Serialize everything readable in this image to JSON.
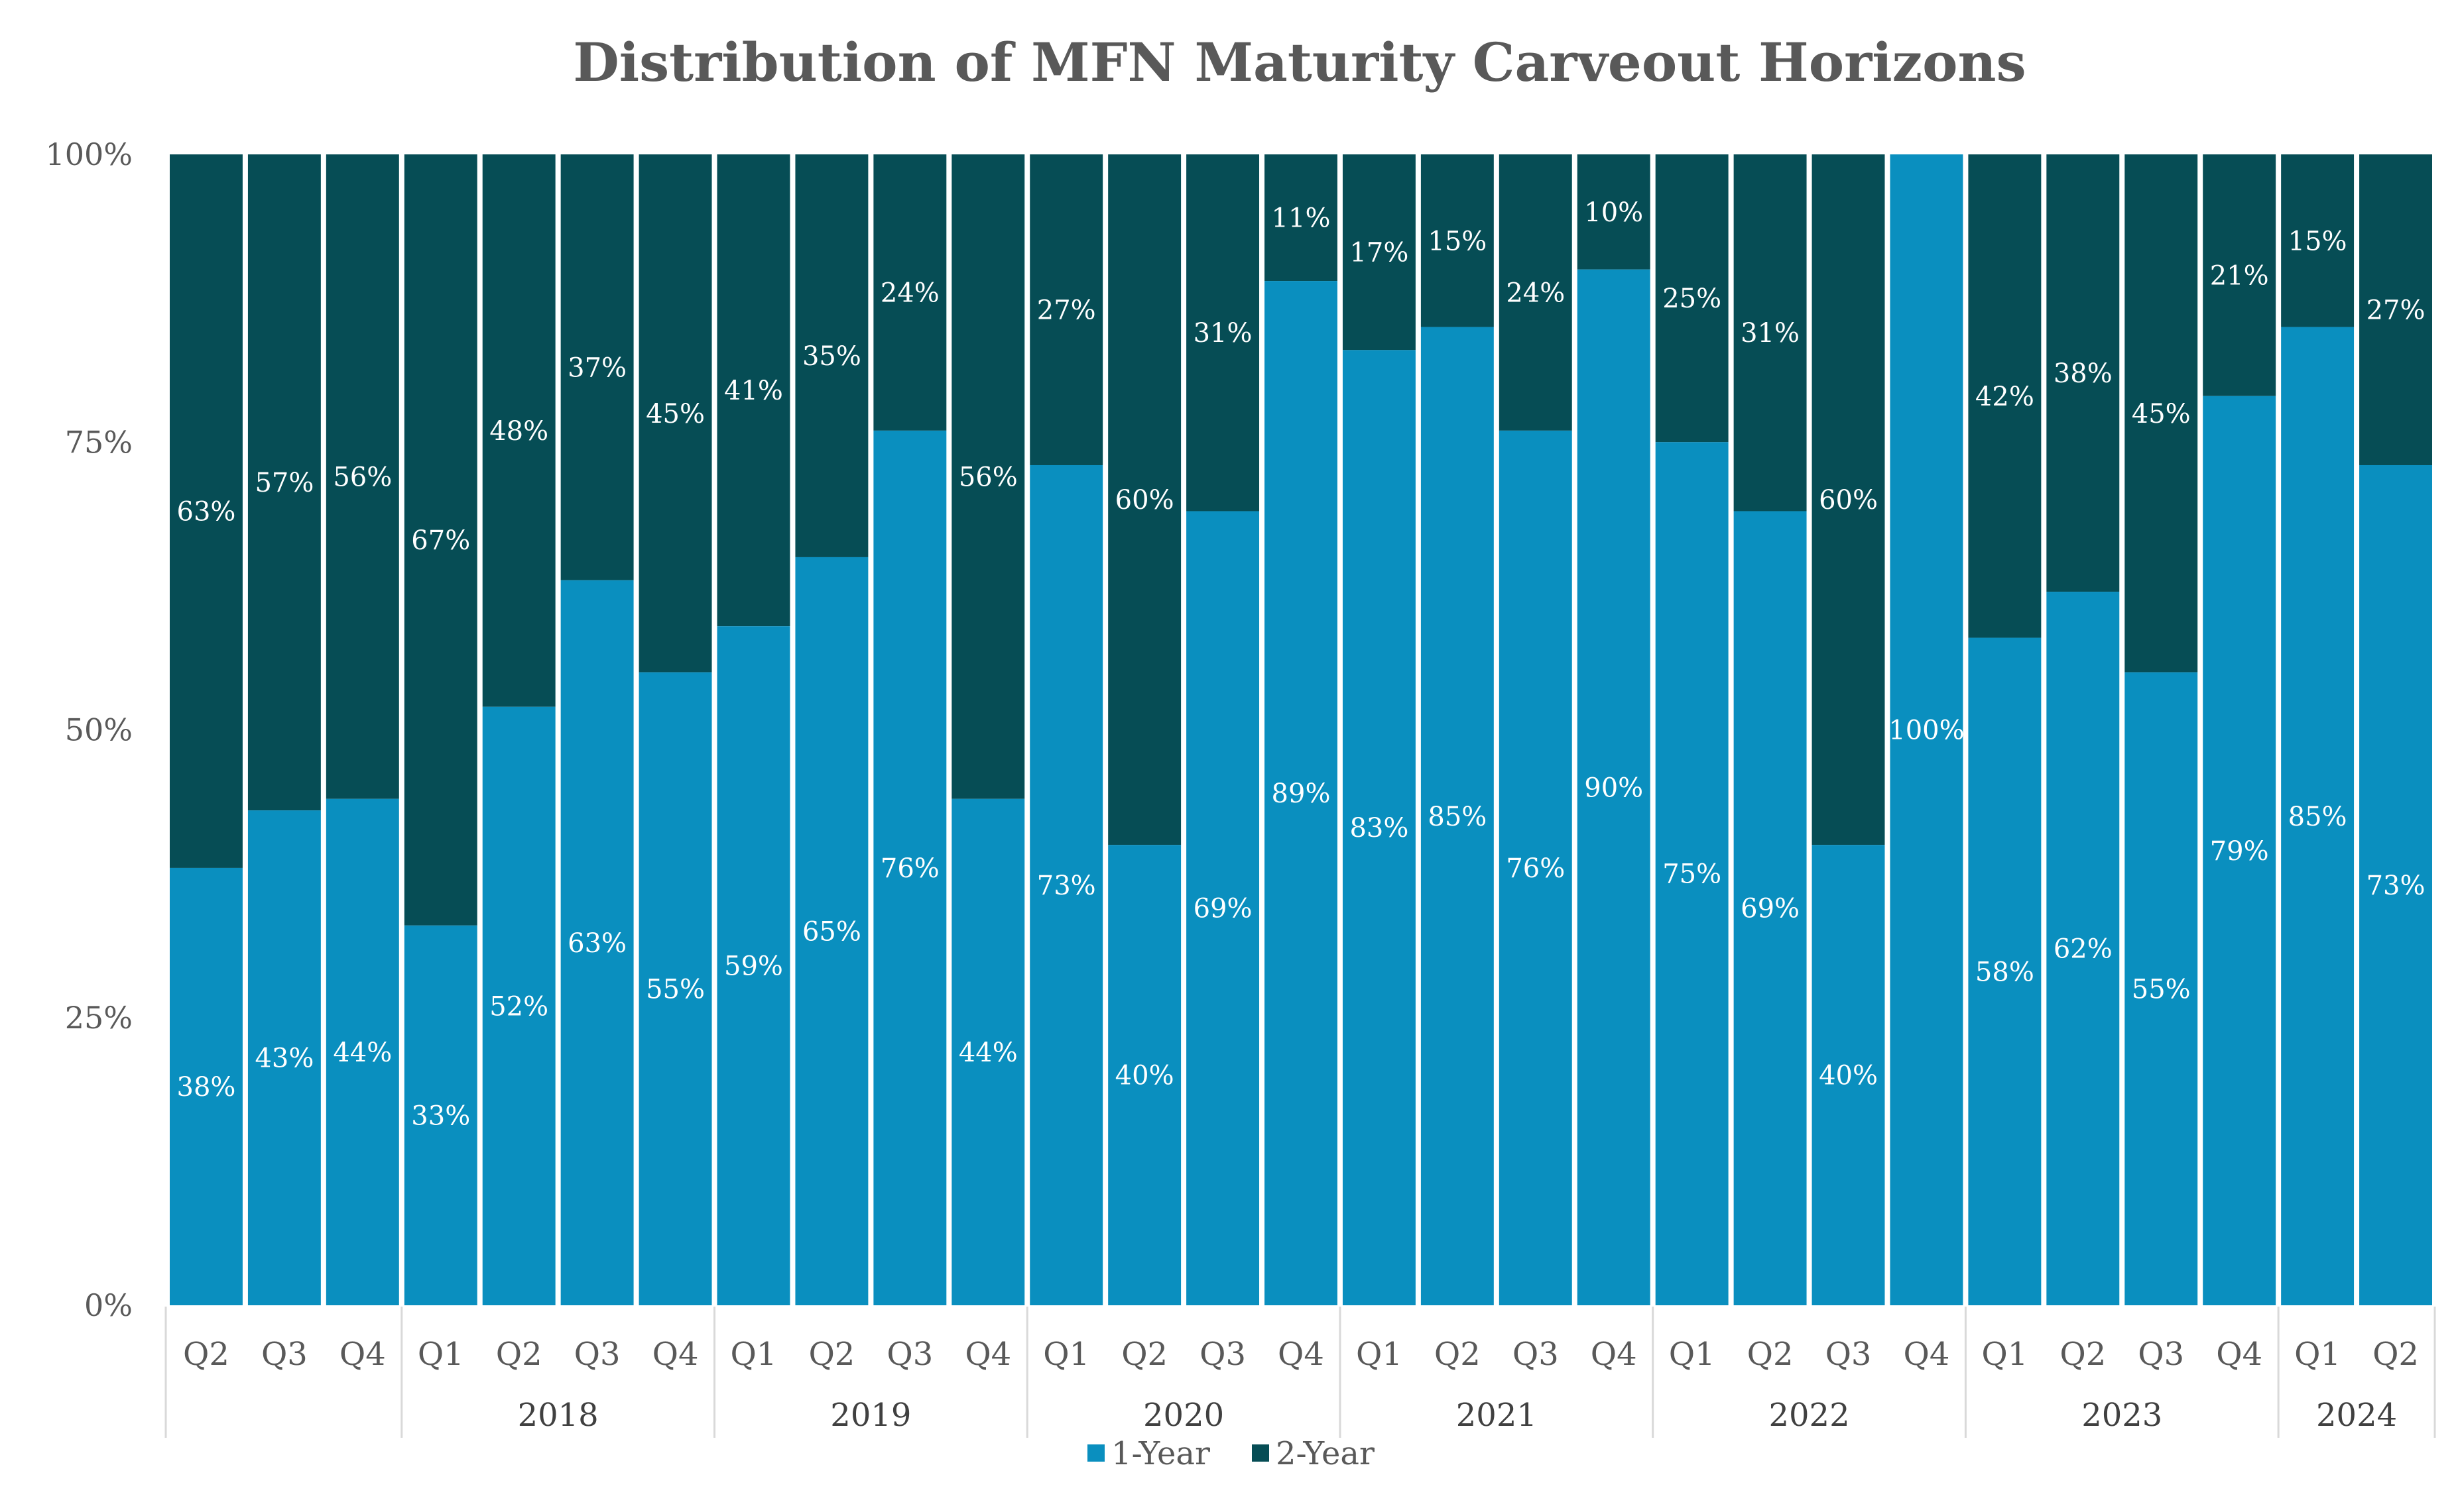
{
  "chart_data": {
    "type": "bar",
    "stacked": true,
    "title": "Distribution of MFN Maturity Carveout Horizons",
    "ylim": [
      0,
      100
    ],
    "y_ticks": [
      "0%",
      "25%",
      "50%",
      "75%",
      "100%"
    ],
    "categories": [
      "Q2",
      "Q3",
      "Q4",
      "Q1",
      "Q2",
      "Q3",
      "Q4",
      "Q1",
      "Q2",
      "Q3",
      "Q4",
      "Q1",
      "Q2",
      "Q3",
      "Q4",
      "Q1",
      "Q2",
      "Q3",
      "Q4",
      "Q1",
      "Q2",
      "Q3",
      "Q4",
      "Q1",
      "Q2",
      "Q3",
      "Q4",
      "Q1",
      "Q2"
    ],
    "year_groups": [
      {
        "label": "",
        "start": 0,
        "count": 3
      },
      {
        "label": "2018",
        "start": 3,
        "count": 4
      },
      {
        "label": "2019",
        "start": 7,
        "count": 4
      },
      {
        "label": "2020",
        "start": 11,
        "count": 4
      },
      {
        "label": "2021",
        "start": 15,
        "count": 4
      },
      {
        "label": "2022",
        "start": 19,
        "count": 4
      },
      {
        "label": "2023",
        "start": 23,
        "count": 4
      },
      {
        "label": "2024",
        "start": 27,
        "count": 2
      }
    ],
    "series": [
      {
        "name": "1-Year",
        "color": "#0A8FBF",
        "values": [
          38,
          43,
          44,
          33,
          52,
          63,
          55,
          59,
          65,
          76,
          44,
          73,
          40,
          69,
          89,
          83,
          85,
          76,
          90,
          75,
          69,
          40,
          100,
          58,
          62,
          55,
          79,
          85,
          73
        ],
        "labels": [
          "38%",
          "43%",
          "44%",
          "33%",
          "52%",
          "63%",
          "55%",
          "59%",
          "65%",
          "76%",
          "44%",
          "73%",
          "40%",
          "69%",
          "89%",
          "83%",
          "85%",
          "76%",
          "90%",
          "75%",
          "69%",
          "40%",
          "100%",
          "58%",
          "62%",
          "55%",
          "79%",
          "85%",
          "73%"
        ]
      },
      {
        "name": "2-Year",
        "color": "#064D55",
        "values": [
          63,
          57,
          56,
          67,
          48,
          37,
          45,
          41,
          35,
          24,
          56,
          27,
          60,
          31,
          11,
          17,
          15,
          24,
          10,
          25,
          31,
          60,
          0,
          42,
          38,
          45,
          21,
          15,
          27
        ],
        "labels": [
          "63%",
          "57%",
          "56%",
          "67%",
          "48%",
          "37%",
          "45%",
          "41%",
          "35%",
          "24%",
          "56%",
          "27%",
          "60%",
          "31%",
          "11%",
          "17%",
          "15%",
          "24%",
          "10%",
          "25%",
          "31%",
          "60%",
          "",
          "42%",
          "38%",
          "45%",
          "21%",
          "15%",
          "27%"
        ]
      }
    ],
    "legend_position": "bottom-center",
    "grid": false
  }
}
